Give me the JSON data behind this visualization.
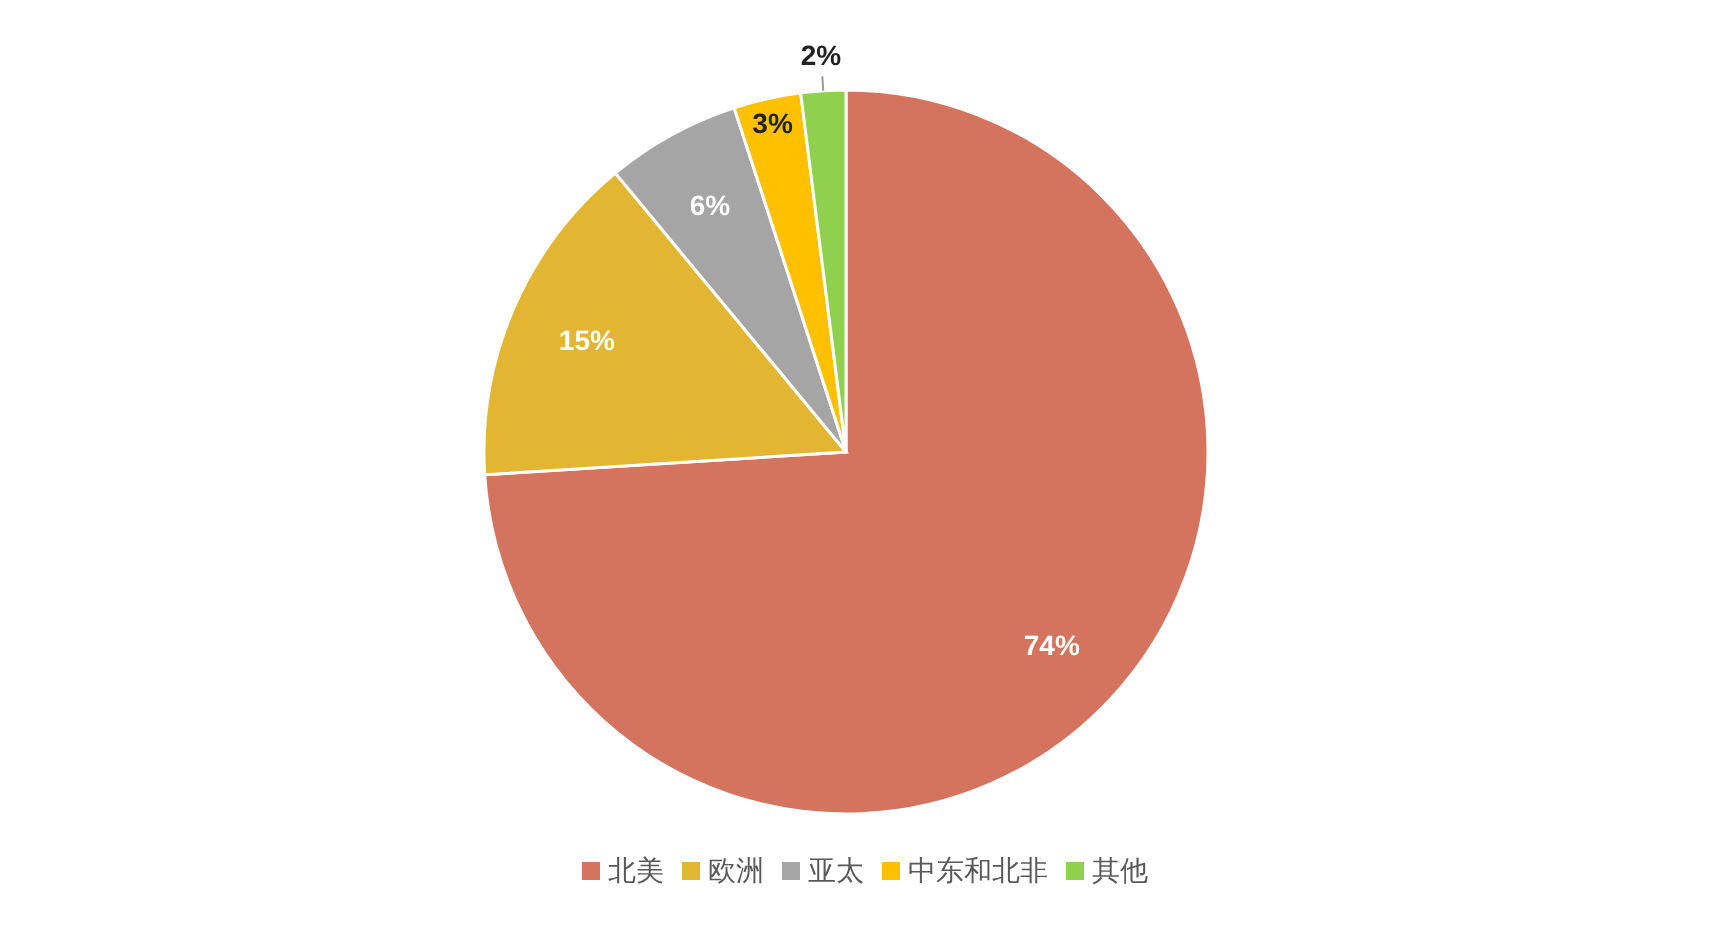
{
  "chart_data": {
    "type": "pie",
    "categories": [
      "北美",
      "欧洲",
      "亚太",
      "中东和北非",
      "其他"
    ],
    "values": [
      74,
      15,
      6,
      3,
      2
    ],
    "colors": [
      "#d4735e",
      "#e2b533",
      "#a5a5a5",
      "#ffc000",
      "#8fd14f"
    ],
    "value_labels": [
      "74%",
      "15%",
      "6%",
      "3%",
      "2%"
    ],
    "legend": "bottom"
  }
}
